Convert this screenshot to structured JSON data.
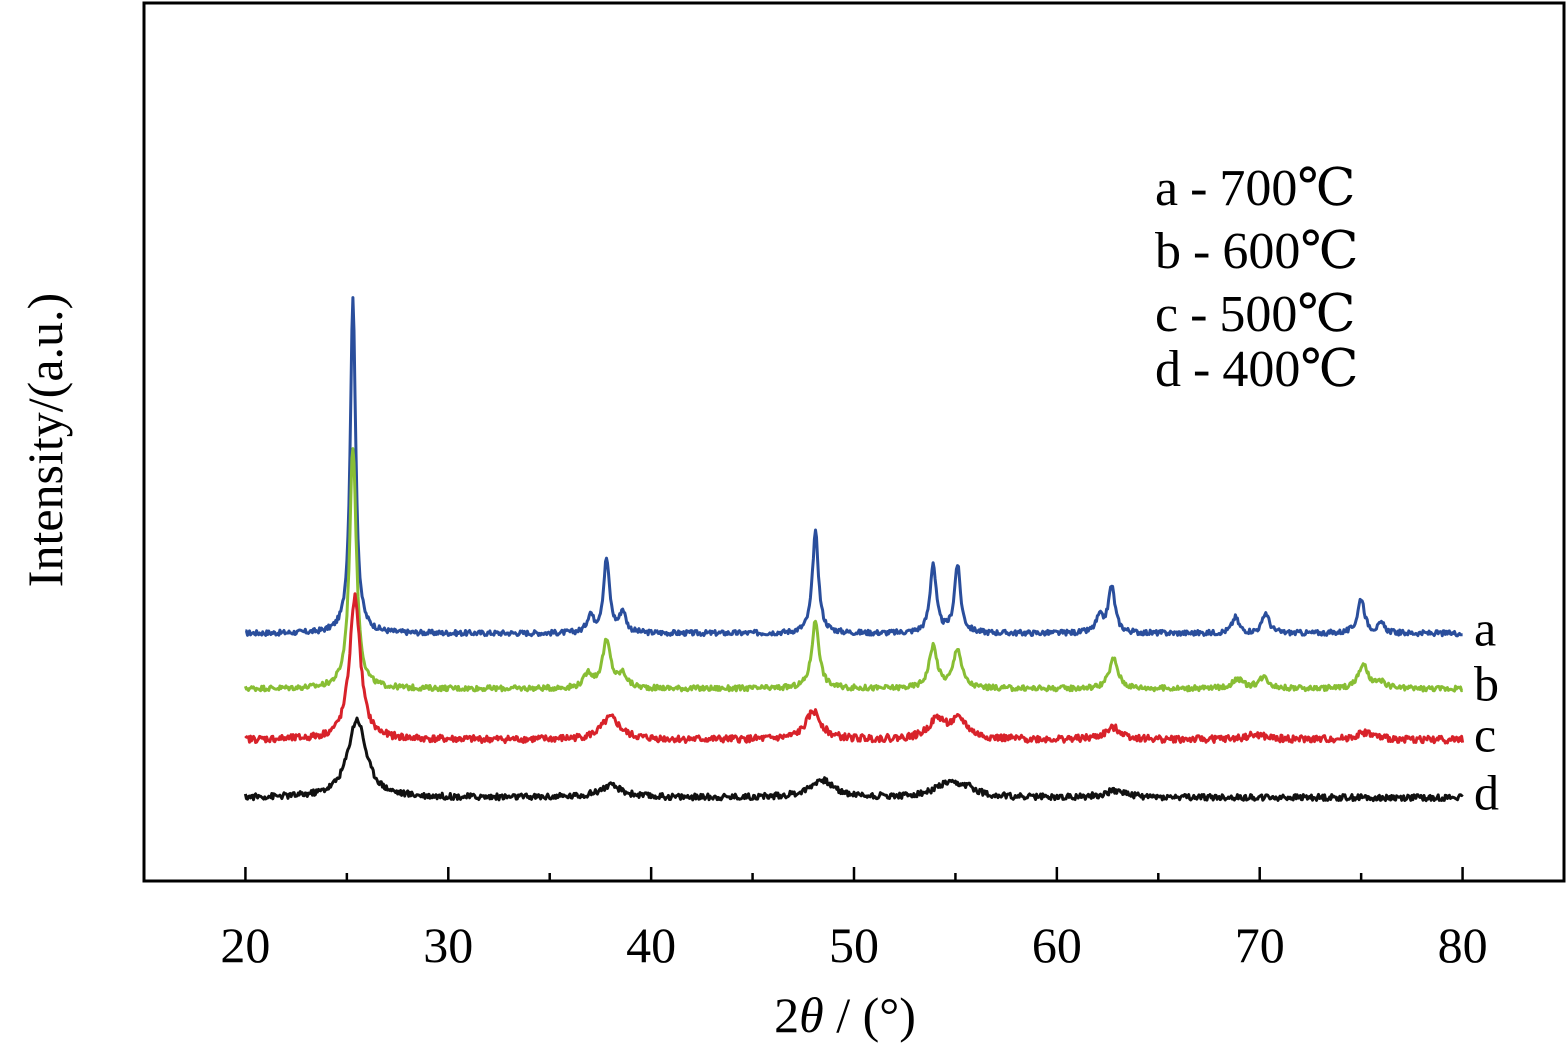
{
  "chart_data": {
    "type": "line",
    "xlabel_prefix": "2",
    "xlabel_theta": "θ",
    "xlabel_suffix": " / (°)",
    "ylabel": "Intensity/(a.u.)",
    "xlim": [
      15,
      85
    ],
    "ylim": [
      0,
      100
    ],
    "xticks": [
      20,
      30,
      40,
      50,
      60,
      70,
      80
    ],
    "grid": false,
    "legend": {
      "placement": "top-right",
      "entries": [
        {
          "key": "a",
          "sep": "-",
          "label": "700℃"
        },
        {
          "key": "b",
          "sep": "-",
          "label": "600℃"
        },
        {
          "key": "c",
          "sep": "-",
          "label": "500℃"
        },
        {
          "key": "d",
          "sep": "-",
          "label": "400℃"
        }
      ]
    },
    "series": [
      {
        "name": "a",
        "color": "#2a4e9c",
        "baseline": 28.2,
        "noise": 0.3,
        "peaks": [
          [
            25.3,
            38.1,
            0.16
          ],
          [
            37.0,
            2.0,
            0.18
          ],
          [
            37.8,
            8.4,
            0.18
          ],
          [
            38.6,
            2.4,
            0.18
          ],
          [
            48.1,
            11.5,
            0.18
          ],
          [
            53.9,
            7.9,
            0.18
          ],
          [
            55.1,
            7.7,
            0.18
          ],
          [
            62.1,
            1.7,
            0.2
          ],
          [
            62.7,
            5.3,
            0.2
          ],
          [
            68.8,
            1.8,
            0.2
          ],
          [
            70.3,
            2.3,
            0.2
          ],
          [
            75.0,
            4.0,
            0.2
          ],
          [
            76.0,
            1.0,
            0.2
          ]
        ]
      },
      {
        "name": "b",
        "color": "#88be34",
        "baseline": 21.9,
        "noise": 0.3,
        "peaks": [
          [
            25.3,
            27.6,
            0.2
          ],
          [
            36.9,
            1.6,
            0.25
          ],
          [
            37.8,
            5.3,
            0.25
          ],
          [
            38.6,
            1.5,
            0.25
          ],
          [
            48.1,
            7.7,
            0.22
          ],
          [
            53.9,
            4.8,
            0.24
          ],
          [
            55.1,
            4.5,
            0.24
          ],
          [
            62.8,
            3.4,
            0.26
          ],
          [
            68.9,
            1.1,
            0.3
          ],
          [
            70.2,
            1.3,
            0.3
          ],
          [
            75.1,
            2.7,
            0.28
          ],
          [
            76.0,
            0.6,
            0.3
          ]
        ]
      },
      {
        "name": "c",
        "color": "#d8222a",
        "baseline": 16.1,
        "noise": 0.4,
        "peaks": [
          [
            25.4,
            16.3,
            0.32
          ],
          [
            38.0,
            2.5,
            0.55
          ],
          [
            48.0,
            3.2,
            0.45
          ],
          [
            54.1,
            2.2,
            0.5
          ],
          [
            55.2,
            2.1,
            0.5
          ],
          [
            62.8,
            1.3,
            0.5
          ],
          [
            69.8,
            0.5,
            0.6
          ],
          [
            75.2,
            0.8,
            0.5
          ]
        ]
      },
      {
        "name": "d",
        "color": "#111111",
        "baseline": 9.5,
        "noise": 0.35,
        "peaks": [
          [
            25.5,
            8.9,
            0.55
          ],
          [
            38.0,
            1.3,
            0.7
          ],
          [
            48.4,
            2.0,
            0.7
          ],
          [
            54.6,
            1.4,
            0.8
          ],
          [
            55.6,
            0.8,
            0.6
          ],
          [
            62.9,
            0.8,
            0.6
          ]
        ]
      }
    ]
  }
}
